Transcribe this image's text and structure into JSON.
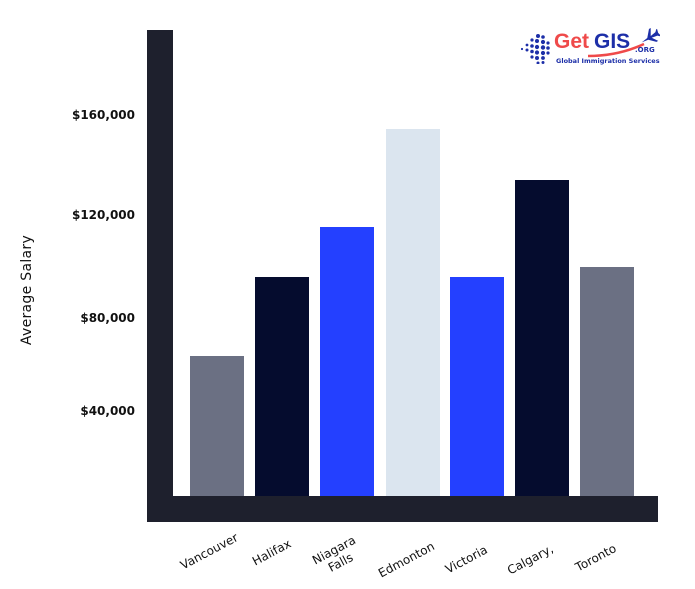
{
  "logo": {
    "part1": "Get",
    "part2": "GIS",
    "suffix": ".ORG",
    "tagline": "Global Immigration Services"
  },
  "chart_data": {
    "type": "bar",
    "title": "",
    "xlabel": "",
    "ylabel": "Average Salary",
    "categories": [
      "Vancouver",
      "Halifax",
      "Niagara Falls",
      "Edmonton",
      "Victoria",
      "Calgary,",
      "Toronto"
    ],
    "values": [
      62000,
      94000,
      114000,
      154000,
      94000,
      133000,
      98000
    ],
    "colors": [
      "#6b7083",
      "#050c2e",
      "#2440ff",
      "#dbe5ef",
      "#2440ff",
      "#050c2e",
      "#6b7083"
    ],
    "yticks": [
      "$40,000",
      "$80,000",
      "$120,000",
      "$160,000"
    ],
    "ytick_values": [
      40000,
      80000,
      120000,
      160000
    ],
    "ylim": [
      0,
      190000
    ],
    "grid": false,
    "legend": null
  },
  "axis": {
    "ylabel": "Average Salary",
    "ytick_labels": [
      "$160,000",
      "$120,000",
      "$80,000",
      "$40,000"
    ],
    "x_labels": [
      "Vancouver",
      "Halifax",
      "Niagara\nFalls",
      "Edmonton",
      "Victoria",
      "Calgary,",
      "Toronto"
    ]
  }
}
